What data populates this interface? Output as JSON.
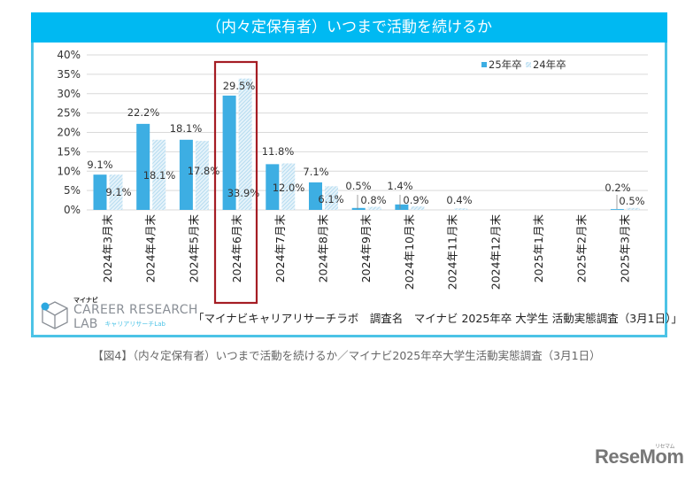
{
  "chart_data": {
    "type": "bar",
    "title": "（内々定保有者）いつまで活動を続けるか",
    "xlabel": "",
    "ylabel": "",
    "ylim": [
      0,
      40
    ],
    "yticks": [
      "0%",
      "5%",
      "10%",
      "15%",
      "20%",
      "25%",
      "30%",
      "35%",
      "40%"
    ],
    "ytick_values": [
      0,
      5,
      10,
      15,
      20,
      25,
      30,
      35,
      40
    ],
    "grid": true,
    "legend_position": "top-right",
    "categories": [
      "2024年3月末",
      "2024年4月末",
      "2024年5月末",
      "2024年6月末",
      "2024年7月末",
      "2024年8月末",
      "2024年9月末",
      "2024年10月末",
      "2024年11月末",
      "2024年12月末",
      "2025年1月末",
      "2025年2月末",
      "2025年3月末"
    ],
    "series": [
      {
        "name": "25年卒",
        "color": "#3daee3",
        "pattern": "solid",
        "values": [
          9.1,
          22.2,
          18.1,
          29.5,
          11.8,
          7.1,
          0.5,
          1.4,
          null,
          null,
          null,
          null,
          0.2
        ],
        "labels": [
          "9.1%",
          "22.2%",
          "18.1%",
          "29.5%",
          "11.8%",
          "7.1%",
          "0.5%",
          "1.4%",
          "",
          "",
          "",
          "",
          "0.2%"
        ]
      },
      {
        "name": "24年卒",
        "color": "#a9d6ee",
        "pattern": "hatched",
        "values": [
          9.1,
          18.1,
          17.8,
          33.9,
          12.0,
          6.1,
          0.8,
          0.9,
          0.4,
          null,
          null,
          null,
          0.5
        ],
        "labels": [
          "9.1%",
          "18.1%",
          "17.8%",
          "33.9%",
          "12.0%",
          "6.1%",
          "0.8%",
          "0.9%",
          "0.4%",
          "",
          "",
          "",
          "0.5%"
        ]
      }
    ],
    "highlight_category": "2024年6月末",
    "highlight_color": "#a51d24"
  },
  "header": {
    "title": "（内々定保有者）いつまで活動を続けるか"
  },
  "source_note": "「マイナビキャリアリサーチラボ　調査名　マイナビ 2025年卒 大学生 活動実態調査（3月1日）」",
  "logo": {
    "brand_small": "マイナビ",
    "line1": "CAREER RESEARCH",
    "line2": "LAB",
    "line2_jp": "キャリアリサーチLab"
  },
  "caption": "【図4】（内々定保有者）いつまで活動を続けるか／マイナビ2025年卒大学生活動実態調査（3月1日）",
  "watermark": {
    "text": "ReseMom",
    "kana": "リセマム"
  }
}
